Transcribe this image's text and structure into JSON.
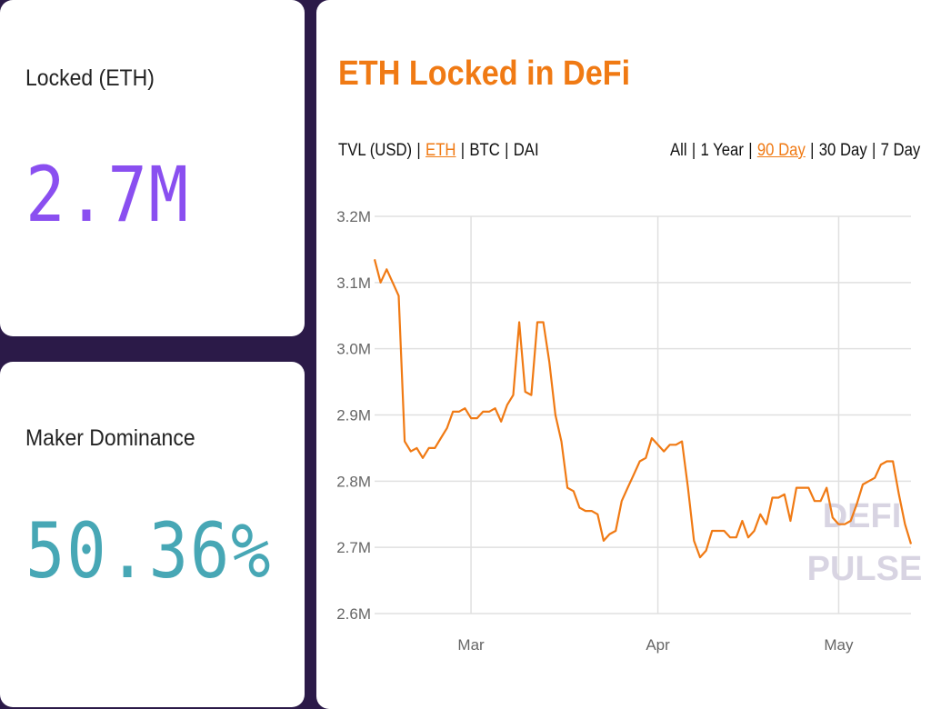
{
  "colors": {
    "background": "#2b1a48",
    "accent_orange": "#f07a14",
    "locked_value": "#8a4ff0",
    "maker_value": "#47a7b5",
    "grid": "#e0e0e0"
  },
  "locked": {
    "label": "Locked (ETH)",
    "value": "2.7M"
  },
  "maker": {
    "label": "Maker Dominance",
    "value": "50.36%"
  },
  "chart_card": {
    "title": "ETH Locked in DeFi",
    "unit_options": [
      {
        "label": "TVL (USD)",
        "active": false
      },
      {
        "label": "ETH",
        "active": true
      },
      {
        "label": "BTC",
        "active": false
      },
      {
        "label": "DAI",
        "active": false
      }
    ],
    "range_options": [
      {
        "label": "All",
        "active": false
      },
      {
        "label": "1 Year",
        "active": false
      },
      {
        "label": "90 Day",
        "active": true
      },
      {
        "label": "30 Day",
        "active": false
      },
      {
        "label": "7 Day",
        "active": false
      }
    ],
    "separator": "|",
    "watermark": [
      "DEFI",
      "PULSE"
    ]
  },
  "chart_data": {
    "type": "line",
    "title": "ETH Locked in DeFi",
    "xlabel": "",
    "ylabel": "",
    "ylim": [
      2.6,
      3.2
    ],
    "y_ticks": [
      "2.6M",
      "2.7M",
      "2.8M",
      "2.9M",
      "3.0M",
      "3.1M",
      "3.2M"
    ],
    "y_tick_values": [
      2.6,
      2.7,
      2.8,
      2.9,
      3.0,
      3.1,
      3.2
    ],
    "x_ticks": [
      {
        "label": "Mar",
        "value": "2020-03-01"
      },
      {
        "label": "Apr",
        "value": "2020-04-01"
      },
      {
        "label": "May",
        "value": "2020-05-01"
      }
    ],
    "xlim": [
      "2020-02-14",
      "2020-05-13"
    ],
    "grid": true,
    "legend": "none",
    "series": [
      {
        "color": "#f07a14",
        "x": [
          "2020-02-14",
          "2020-02-15",
          "2020-02-16",
          "2020-02-17",
          "2020-02-18",
          "2020-02-19",
          "2020-02-20",
          "2020-02-21",
          "2020-02-22",
          "2020-02-23",
          "2020-02-24",
          "2020-02-25",
          "2020-02-26",
          "2020-02-27",
          "2020-02-28",
          "2020-02-29",
          "2020-03-01",
          "2020-03-02",
          "2020-03-03",
          "2020-03-04",
          "2020-03-05",
          "2020-03-06",
          "2020-03-07",
          "2020-03-08",
          "2020-03-09",
          "2020-03-10",
          "2020-03-11",
          "2020-03-12",
          "2020-03-13",
          "2020-03-14",
          "2020-03-15",
          "2020-03-16",
          "2020-03-17",
          "2020-03-18",
          "2020-03-19",
          "2020-03-20",
          "2020-03-21",
          "2020-03-22",
          "2020-03-23",
          "2020-03-24",
          "2020-03-25",
          "2020-03-26",
          "2020-03-27",
          "2020-03-28",
          "2020-03-29",
          "2020-03-30",
          "2020-03-31",
          "2020-04-01",
          "2020-04-02",
          "2020-04-03",
          "2020-04-04",
          "2020-04-05",
          "2020-04-06",
          "2020-04-07",
          "2020-04-08",
          "2020-04-09",
          "2020-04-10",
          "2020-04-11",
          "2020-04-12",
          "2020-04-13",
          "2020-04-14",
          "2020-04-15",
          "2020-04-16",
          "2020-04-17",
          "2020-04-18",
          "2020-04-19",
          "2020-04-20",
          "2020-04-21",
          "2020-04-22",
          "2020-04-23",
          "2020-04-24",
          "2020-04-25",
          "2020-04-26",
          "2020-04-27",
          "2020-04-28",
          "2020-04-29",
          "2020-04-30",
          "2020-05-01",
          "2020-05-02",
          "2020-05-03",
          "2020-05-04",
          "2020-05-05",
          "2020-05-06",
          "2020-05-07",
          "2020-05-08",
          "2020-05-09",
          "2020-05-10",
          "2020-05-11",
          "2020-05-12",
          "2020-05-13"
        ],
        "values": [
          3.135,
          3.1,
          3.12,
          3.1,
          3.08,
          2.86,
          2.845,
          2.85,
          2.835,
          2.85,
          2.85,
          2.865,
          2.88,
          2.905,
          2.905,
          2.91,
          2.895,
          2.895,
          2.905,
          2.905,
          2.91,
          2.89,
          2.915,
          2.93,
          3.04,
          2.935,
          2.93,
          3.04,
          3.04,
          2.98,
          2.9,
          2.86,
          2.79,
          2.785,
          2.76,
          2.755,
          2.755,
          2.75,
          2.71,
          2.72,
          2.725,
          2.77,
          2.79,
          2.81,
          2.83,
          2.835,
          2.865,
          2.855,
          2.845,
          2.855,
          2.855,
          2.86,
          2.79,
          2.71,
          2.685,
          2.695,
          2.725,
          2.725,
          2.725,
          2.715,
          2.715,
          2.74,
          2.715,
          2.725,
          2.75,
          2.735,
          2.775,
          2.775,
          2.78,
          2.74,
          2.79,
          2.79,
          2.79,
          2.77,
          2.77,
          2.79,
          2.745,
          2.735,
          2.735,
          2.74,
          2.765,
          2.795,
          2.8,
          2.805,
          2.825,
          2.83,
          2.83,
          2.78,
          2.735,
          2.705
        ]
      }
    ]
  }
}
